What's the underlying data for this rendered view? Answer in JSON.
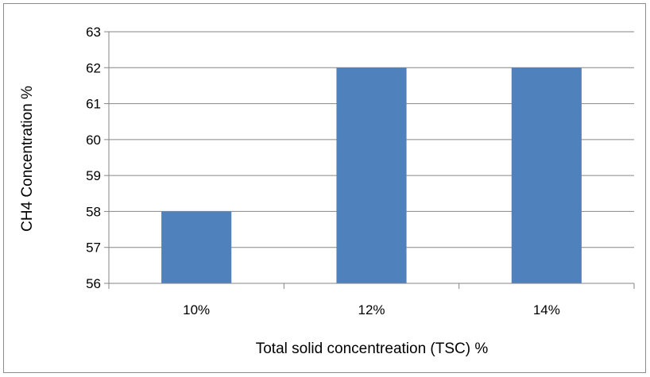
{
  "chart_data": {
    "type": "bar",
    "title": "",
    "categories": [
      "10%",
      "12%",
      "14%"
    ],
    "values": [
      58,
      62,
      62
    ],
    "xlabel": "Total solid concentreation (TSC) %",
    "ylabel": "CH4 Concentration %",
    "ylim": [
      56,
      63
    ],
    "yticks": [
      "56",
      "57",
      "58",
      "59",
      "60",
      "61",
      "62",
      "63"
    ],
    "grid": true,
    "legend": "none",
    "colors": {
      "bar": "#4f81bd",
      "grid": "#868686",
      "axis": "#868686",
      "border": "#8c8c8c"
    }
  }
}
